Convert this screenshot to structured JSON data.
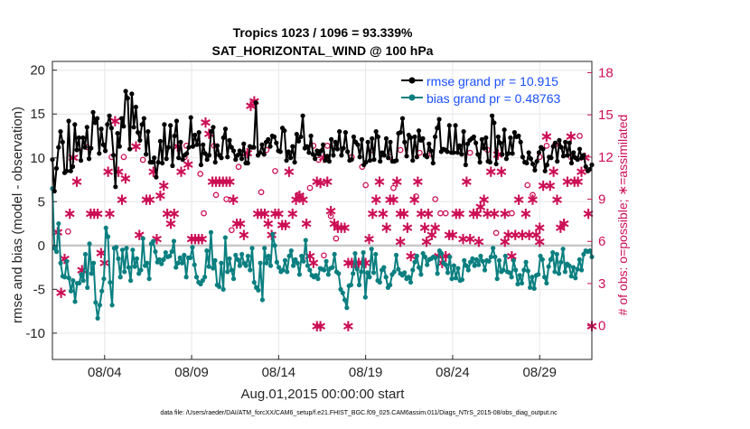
{
  "chart_data": {
    "type": "line",
    "title_line1": "Tropics 1023 / 1096 = 93.339%",
    "title_line2": "SAT_HORIZONTAL_WIND @ 100 hPa",
    "xlabel": "Aug.01,2015 00:00:00 start",
    "ylabel_left": "rmse and bias (model - observation)",
    "ylabel_right": "# of obs: o=possible; ∗=assimilated",
    "left_ylim": [
      -13,
      21
    ],
    "right_ylim": [
      -2.4,
      18.8
    ],
    "xlim": [
      1.0,
      32.0
    ],
    "left_ticks": [
      -10,
      -5,
      0,
      5,
      10,
      15,
      20
    ],
    "right_ticks": [
      0,
      3,
      6,
      9,
      12,
      15,
      18
    ],
    "x_ticks": [
      {
        "day": 4,
        "label": "08/04"
      },
      {
        "day": 9,
        "label": "08/09"
      },
      {
        "day": 14,
        "label": "08/14"
      },
      {
        "day": 19,
        "label": "08/19"
      },
      {
        "day": 24,
        "label": "08/24"
      },
      {
        "day": 29,
        "label": "08/29"
      }
    ],
    "grid": true,
    "legend": {
      "position": "top-right",
      "entries": [
        "rmse grand pr = 10.915",
        "bias grand pr = 0.48763"
      ]
    },
    "colors": {
      "rmse": "#000000",
      "bias": "#0b7f80",
      "obs": "#cc0f55",
      "zero_line": "#c8c8c8",
      "legend_text": "#1a4fff"
    },
    "series": [
      {
        "name": "rmse",
        "values": [
          9.8,
          6.2,
          8.8,
          11.2,
          13.0,
          11.8,
          8.3,
          8.5,
          14.2,
          8.5,
          9.0,
          13.8,
          10.9,
          12.3,
          9.7,
          12.3,
          11.2,
          13.5,
          9.9,
          11.1,
          15.2,
          14.0,
          14.5,
          10.5,
          13.3,
          11.5,
          10.8,
          13.8,
          14.8,
          13.4,
          10.3,
          6.7,
          12.8,
          11.3,
          14.5,
          13.6,
          17.6,
          16.8,
          11.0,
          17.3,
          13.5,
          15.8,
          12.9,
          12.0,
          13.8,
          14.5,
          10.4,
          13.0,
          9.5,
          9.5,
          10.0,
          7.8,
          9.5,
          11.9,
          9.4,
          13.8,
          9.9,
          11.2,
          13.7,
          9.1,
          12.5,
          14.2,
          10.0,
          11.8,
          9.8,
          10.3,
          10.5,
          11.2,
          14.6,
          11.3,
          12.6,
          11.5,
          12.9,
          9.2,
          11.5,
          10.5,
          9.8,
          10.3,
          13.0,
          13.5,
          9.5,
          11.4,
          10.3,
          10.0,
          12.3,
          13.3,
          10.1,
          12.0,
          11.2,
          10.8,
          9.8,
          10.3,
          10.8,
          9.9,
          11.6,
          9.4,
          9.4,
          11.3,
          11.2,
          11.2,
          16.3,
          10.3,
          10.6,
          11.5,
          10.4,
          11.8,
          12.1,
          11.3,
          12.5,
          12.4,
          11.7,
          10.8,
          10.7,
          13.4,
          13.1,
          9.7,
          10.7,
          10.0,
          11.3,
          9.5,
          12.7,
          11.9,
          12.4,
          14.8,
          11.1,
          11.3,
          10.6,
          12.5,
          10.4,
          9.9,
          10.8,
          10.4,
          10.8,
          11.5,
          9.7,
          10.2,
          9.6,
          12.1,
          10.3,
          11.8,
          11.0,
          13.0,
          10.3,
          11.1,
          12.9,
          10.7,
          9.7,
          9.8,
          12.4,
          11.8,
          11.5,
          10.1,
          12.1,
          9.2,
          9.5,
          11.8,
          9.7,
          12.2,
          9.8,
          13.0,
          12.4,
          9.6,
          10.6,
          10.3,
          12.2,
          10.0,
          11.8,
          9.6,
          9.6,
          9.7,
          12.8,
          12.9,
          14.5,
          11.8,
          10.2,
          12.6,
          12.3,
          9.7,
          12.4,
          10.1,
          13.1,
          12.0,
          12.2,
          10.3,
          10.1,
          11.6,
          10.8,
          9.4,
          12.4,
          13.4,
          14.4,
          10.7,
          11.0,
          10.9,
          10.7,
          13.7,
          10.6,
          10.6,
          13.7,
          10.6,
          11.4,
          10.4,
          13.0,
          9.2,
          11.6,
          12.0,
          12.2,
          12.4,
          11.7,
          10.4,
          9.5,
          12.1,
          11.1,
          12.3,
          9.6,
          9.5,
          14.8,
          14.0,
          9.3,
          12.4,
          11.7,
          10.4,
          13.2,
          9.9,
          10.5,
          12.3,
          10.5,
          12.9,
          12.4,
          12.5,
          11.8,
          10.1,
          9.5,
          9.4,
          10.6,
          9.9,
          9.3,
          8.6,
          9.6,
          10.6,
          11.2,
          11.0,
          8.5,
          9.2,
          10.1,
          10.0,
          11.3,
          11.7,
          9.6,
          12.0,
          11.2,
          10.2,
          11.8,
          10.3,
          11.7,
          9.4,
          10.6,
          10.0,
          9.8,
          11.0,
          10.0,
          10.3,
          9.0,
          8.5,
          8.7,
          9.2
        ]
      },
      {
        "name": "bias",
        "values": [
          6.5,
          -0.3,
          -0.7,
          2.5,
          -2.0,
          -3.5,
          -3.6,
          -1.8,
          -3.7,
          -5.2,
          -4.0,
          -6.4,
          -4.3,
          -4.3,
          -3.3,
          -4.0,
          -1.0,
          -4.8,
          0.2,
          -3.2,
          -2.0,
          -6.5,
          -8.3,
          -6.8,
          -5.2,
          -3.8,
          2.0,
          1.0,
          -4.2,
          -6.8,
          -0.3,
          -0.2,
          -1.5,
          -3.6,
          -0.5,
          -3.0,
          -0.3,
          -2.5,
          -4.0,
          -0.5,
          -2.4,
          -1.5,
          -3.2,
          -2.8,
          0.8,
          -2.3,
          -2.0,
          -3.8,
          0.2,
          0.5,
          -0.7,
          -1.9,
          -1.6,
          -2.1,
          -1.6,
          -0.8,
          -1.3,
          -1.2,
          -0.7,
          0.5,
          -2.5,
          -2.0,
          -1.4,
          -2.0,
          -1.1,
          -3.6,
          -1.4,
          -1.4,
          -0.2,
          -2.2,
          -3.6,
          -4.2,
          -4.4,
          -4.0,
          -3.6,
          -0.6,
          -2.4,
          1.5,
          -2.6,
          -1.7,
          -4.5,
          -4.7,
          -2.0,
          -5.0,
          0.9,
          -3.0,
          -1.5,
          -2.8,
          -3.8,
          -1.1,
          -1.6,
          -2.3,
          -1.0,
          -2.0,
          -2.3,
          -1.2,
          -2.8,
          -0.3,
          -4.2,
          -4.8,
          -5.1,
          -2.0,
          -6.2,
          -0.3,
          -2.0,
          -1.2,
          -2.3,
          1.3,
          0.0,
          -1.9,
          -2.5,
          -3.0,
          -2.8,
          -1.7,
          -3.0,
          -1.2,
          -0.6,
          -2.3,
          -1.6,
          -2.0,
          -3.3,
          -1.2,
          -1.8,
          0.6,
          -2.3,
          -2.8,
          -3.4,
          -3.6,
          -3.4,
          -3.8,
          -2.6,
          -2.7,
          -2.8,
          -1.8,
          -3.3,
          -2.6,
          -2.5,
          -1.0,
          -3.0,
          -3.2,
          -5.0,
          -5.4,
          -6.2,
          -7.1,
          -4.6,
          -4.5,
          -3.2,
          -0.9,
          -2.7,
          -4.5,
          -3.0,
          -0.8,
          -5.9,
          -3.1,
          -3.6,
          -0.4,
          -3.1,
          -1.0,
          -4.0,
          -4.2,
          -2.8,
          -2.5,
          -3.6,
          -4.8,
          -4.5,
          -3.3,
          -3.0,
          -1.1,
          -2.7,
          -3.2,
          -3.4,
          -3.1,
          -3.8,
          -3.6,
          -4.2,
          -2.8,
          -1.9,
          -1.2,
          -2.5,
          -3.3,
          -0.9,
          -1.3,
          -2.2,
          -1.6,
          -1.5,
          -1.3,
          -1.4,
          -3.2,
          -0.6,
          -0.9,
          -2.0,
          -2.2,
          -3.1,
          -1.3,
          -3.8,
          -2.3,
          -3.7,
          -2.6,
          -4.0,
          -3.9,
          -1.7,
          -2.3,
          -2.8,
          -1.9,
          -1.5,
          -2.3,
          -1.6,
          -2.2,
          -1.2,
          -1.8,
          -2.8,
          -1.7,
          -1.8,
          -1.3,
          -0.3,
          -1.3,
          -3.8,
          -1.7,
          -3.0,
          -2.8,
          -1.2,
          -3.0,
          -3.1,
          -3.6,
          -1.7,
          -2.8,
          -4.4,
          -3.4,
          -4.3,
          -2.8,
          -1.9,
          -2.9,
          -4.8,
          -3.6,
          -4.9,
          -3.4,
          -3.3,
          -1.2,
          -1.6,
          -3.6,
          -4.3,
          -2.4,
          -1.6,
          -0.8,
          -3.0,
          -1.0,
          -3.2,
          -1.9,
          -0.4,
          -3.0,
          -2.1,
          -2.3,
          -3.5,
          -2.5,
          -3.7,
          -2.7,
          -1.6,
          -2.8,
          -1.0,
          -0.6,
          -0.7,
          -0.6,
          -1.3
        ]
      }
    ],
    "obs_possible": [
      [
        1.9,
        6.7
      ],
      [
        3.0,
        12.7
      ],
      [
        4.4,
        12.0
      ],
      [
        5.1,
        12.0
      ],
      [
        6.2,
        11.8
      ],
      [
        8.6,
        12.0
      ],
      [
        8.7,
        12.8
      ],
      [
        9.5,
        10.8
      ],
      [
        9.7,
        8.0
      ],
      [
        10.3,
        12.8
      ],
      [
        10.4,
        9.3
      ],
      [
        11.0,
        9.0
      ],
      [
        11.3,
        6.8
      ],
      [
        11.7,
        11.3
      ],
      [
        13.0,
        9.5
      ],
      [
        13.3,
        12.5
      ],
      [
        13.8,
        11.0
      ],
      [
        15.1,
        9.3
      ],
      [
        15.8,
        9.8
      ],
      [
        16.0,
        12.8
      ],
      [
        16.3,
        11.8
      ],
      [
        16.6,
        5.0
      ],
      [
        16.8,
        12.8
      ],
      [
        17.0,
        7.8
      ],
      [
        17.3,
        6.2
      ],
      [
        18.2,
        12.0
      ],
      [
        18.8,
        11.3
      ],
      [
        19.0,
        10.0
      ],
      [
        19.4,
        12.5
      ],
      [
        20.4,
        12.0
      ],
      [
        20.6,
        9.8
      ],
      [
        21.0,
        12.5
      ],
      [
        21.9,
        9.2
      ],
      [
        22.1,
        12.3
      ],
      [
        22.8,
        12.2
      ],
      [
        23.0,
        9.0
      ],
      [
        23.3,
        8.0
      ],
      [
        23.6,
        8.0
      ],
      [
        25.0,
        12.3
      ],
      [
        26.0,
        12.5
      ],
      [
        26.5,
        6.6
      ],
      [
        27.4,
        8.0
      ],
      [
        28.3,
        10.0
      ],
      [
        28.6,
        9.3
      ],
      [
        29.0,
        12.0
      ],
      [
        29.4,
        12.8
      ],
      [
        29.9,
        12.9
      ],
      [
        30.8,
        12.0
      ],
      [
        31.3,
        13.5
      ]
    ],
    "obs_assimilated": [
      [
        1.3,
        6.7
      ],
      [
        1.5,
        2.4
      ],
      [
        1.7,
        4.8
      ],
      [
        2.0,
        8.0
      ],
      [
        2.2,
        12.0
      ],
      [
        2.4,
        10.3
      ],
      [
        2.7,
        4.0
      ],
      [
        3.2,
        8.0
      ],
      [
        3.4,
        8.0
      ],
      [
        3.6,
        8.0
      ],
      [
        3.8,
        5.2
      ],
      [
        4.0,
        4.5
      ],
      [
        4.2,
        11.0
      ],
      [
        4.3,
        8.0
      ],
      [
        4.6,
        14.6
      ],
      [
        4.8,
        11.0
      ],
      [
        5.0,
        9.0
      ],
      [
        5.2,
        10.5
      ],
      [
        5.8,
        12.8
      ],
      [
        6.0,
        6.5
      ],
      [
        6.4,
        9.0
      ],
      [
        6.6,
        9.0
      ],
      [
        6.8,
        11.0
      ],
      [
        7.0,
        6.2
      ],
      [
        7.2,
        9.3
      ],
      [
        7.4,
        10.0
      ],
      [
        7.6,
        8.0
      ],
      [
        7.8,
        7.3
      ],
      [
        8.0,
        8.0
      ],
      [
        8.2,
        12.8
      ],
      [
        8.4,
        11.0
      ],
      [
        8.8,
        11.5
      ],
      [
        9.0,
        6.2
      ],
      [
        9.2,
        6.2
      ],
      [
        9.4,
        6.2
      ],
      [
        9.6,
        6.2
      ],
      [
        9.8,
        14.5
      ],
      [
        10.0,
        13.7
      ],
      [
        10.2,
        10.3
      ],
      [
        10.4,
        10.3
      ],
      [
        10.6,
        10.3
      ],
      [
        10.8,
        10.3
      ],
      [
        11.0,
        10.3
      ],
      [
        11.2,
        10.3
      ],
      [
        11.4,
        9.0
      ],
      [
        11.6,
        7.3
      ],
      [
        11.8,
        7.3
      ],
      [
        12.0,
        6.5
      ],
      [
        12.2,
        12.3
      ],
      [
        12.4,
        15.7
      ],
      [
        12.6,
        16.0
      ],
      [
        12.8,
        8.0
      ],
      [
        13.0,
        8.0
      ],
      [
        13.2,
        8.0
      ],
      [
        13.4,
        7.3
      ],
      [
        13.6,
        6.5
      ],
      [
        13.8,
        8.0
      ],
      [
        14.0,
        8.0
      ],
      [
        14.2,
        7.2
      ],
      [
        14.4,
        7.2
      ],
      [
        14.6,
        11.0
      ],
      [
        14.8,
        8.0
      ],
      [
        15.0,
        9.0
      ],
      [
        15.2,
        9.3
      ],
      [
        15.4,
        9.0
      ],
      [
        15.6,
        7.3
      ],
      [
        15.8,
        5.0
      ],
      [
        16.0,
        4.5
      ],
      [
        16.2,
        10.3
      ],
      [
        16.4,
        10.2
      ],
      [
        16.6,
        12.0
      ],
      [
        16.8,
        10.3
      ],
      [
        17.0,
        8.2
      ],
      [
        17.2,
        7.3
      ],
      [
        17.4,
        7.0
      ],
      [
        17.6,
        7.0
      ],
      [
        17.8,
        7.0
      ],
      [
        18.0,
        4.5
      ],
      [
        18.2,
        4.5
      ],
      [
        18.4,
        4.5
      ],
      [
        18.6,
        4.5
      ],
      [
        18.8,
        4.5
      ],
      [
        19.0,
        4.5
      ],
      [
        19.2,
        6.2
      ],
      [
        19.4,
        8.0
      ],
      [
        19.6,
        9.0
      ],
      [
        19.8,
        10.3
      ],
      [
        20.0,
        8.0
      ],
      [
        20.2,
        7.0
      ],
      [
        20.4,
        9.0
      ],
      [
        20.6,
        9.0
      ],
      [
        20.8,
        10.3
      ],
      [
        21.0,
        8.0
      ],
      [
        21.2,
        8.0
      ],
      [
        21.4,
        7.0
      ],
      [
        21.6,
        5.0
      ],
      [
        21.8,
        9.0
      ],
      [
        22.0,
        10.3
      ],
      [
        22.2,
        8.0
      ],
      [
        22.4,
        7.0
      ],
      [
        22.6,
        8.0
      ],
      [
        22.8,
        6.5
      ],
      [
        23.0,
        7.0
      ],
      [
        23.2,
        5.0
      ],
      [
        23.4,
        4.5
      ],
      [
        23.6,
        5.0
      ],
      [
        23.8,
        6.5
      ],
      [
        24.0,
        6.5
      ],
      [
        24.2,
        8.0
      ],
      [
        24.4,
        8.0
      ],
      [
        24.6,
        6.2
      ],
      [
        24.8,
        10.3
      ],
      [
        25.0,
        6.2
      ],
      [
        25.2,
        8.0
      ],
      [
        25.4,
        8.0
      ],
      [
        25.6,
        8.5
      ],
      [
        25.8,
        9.0
      ],
      [
        26.0,
        8.0
      ],
      [
        26.2,
        11.0
      ],
      [
        26.4,
        8.0
      ],
      [
        26.6,
        12.2
      ],
      [
        26.8,
        11.0
      ],
      [
        27.0,
        8.0
      ],
      [
        27.2,
        6.5
      ],
      [
        27.4,
        5.0
      ],
      [
        27.6,
        6.5
      ],
      [
        27.8,
        9.0
      ],
      [
        28.0,
        6.5
      ],
      [
        28.2,
        8.0
      ],
      [
        28.4,
        6.5
      ],
      [
        28.6,
        9.0
      ],
      [
        28.8,
        6.5
      ],
      [
        29.0,
        7.0
      ],
      [
        29.2,
        10.0
      ],
      [
        29.4,
        13.5
      ],
      [
        29.6,
        10.0
      ],
      [
        29.8,
        11.0
      ],
      [
        30.0,
        9.0
      ],
      [
        30.2,
        7.0
      ],
      [
        30.4,
        7.3
      ],
      [
        30.6,
        10.3
      ],
      [
        30.8,
        13.5
      ],
      [
        31.0,
        10.3
      ],
      [
        31.2,
        10.3
      ],
      [
        31.4,
        11.0
      ],
      [
        31.6,
        12.0
      ],
      [
        31.8,
        8.0
      ],
      [
        32.0,
        0.0
      ],
      [
        16.2,
        0.0
      ],
      [
        16.4,
        0.0
      ],
      [
        18.0,
        0.0
      ],
      [
        21.0,
        6.0
      ],
      [
        22.5,
        6.0
      ],
      [
        25.5,
        6.0
      ],
      [
        27.0,
        6.0
      ],
      [
        29.0,
        6.0
      ]
    ],
    "footnote": "data file: /Users/raeder/DAI/ATM_forcXX/CAM6_setup/f.e21.FHIST_BGC.f09_025.CAM6assim.011/Diags_NTrS_2015-08/obs_diag_output.nc"
  }
}
